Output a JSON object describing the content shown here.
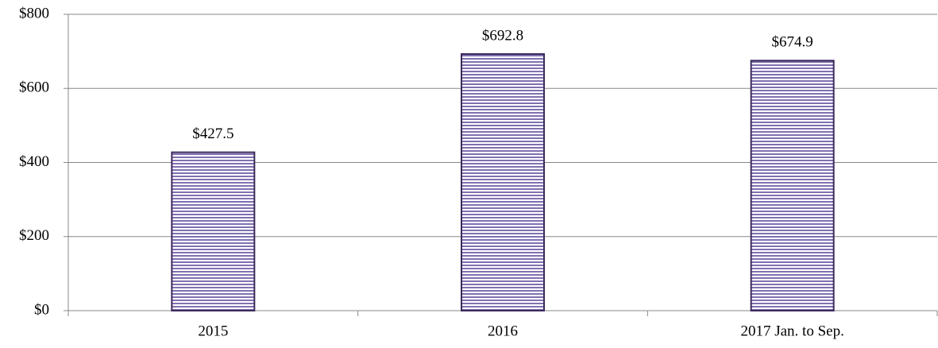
{
  "chart_data": {
    "type": "bar",
    "categories": [
      "2015",
      "2016",
      "2017 Jan. to Sep."
    ],
    "values": [
      427.5,
      692.8,
      674.9
    ],
    "value_labels": [
      "$427.5",
      "$692.8",
      "$674.9"
    ],
    "color": "#8070b0",
    "edgecolor": "#3b2a5c",
    "ylim": [
      0,
      800
    ],
    "yticks": [
      {
        "value": 0,
        "label": "$0"
      },
      {
        "value": 200,
        "label": "$200"
      },
      {
        "value": 400,
        "label": "$400"
      },
      {
        "value": 600,
        "label": "$600"
      },
      {
        "value": 800,
        "label": "$800"
      }
    ],
    "grid": true
  }
}
